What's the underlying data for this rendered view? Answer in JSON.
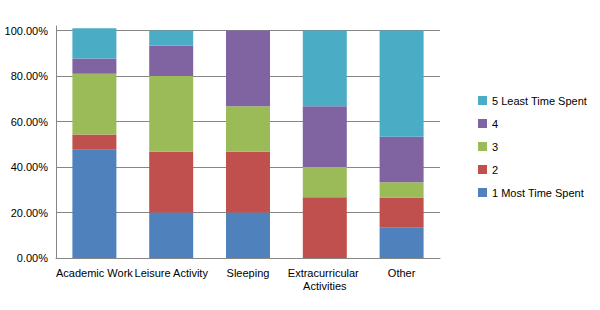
{
  "chart_data": {
    "type": "bar",
    "stacked": true,
    "legend": "right",
    "grid": true,
    "categories": [
      "Academic Work",
      "Leisure Activity",
      "Sleeping",
      "Extracurricular Activities",
      "Other"
    ],
    "series": [
      {
        "name": "1 Most Time Spent",
        "color": "#4f81bd",
        "values": [
          47.6,
          20,
          20,
          0,
          13.3
        ]
      },
      {
        "name": "2",
        "color": "#c0504d",
        "values": [
          6.7,
          26.7,
          26.7,
          26.7,
          13.3
        ]
      },
      {
        "name": "3",
        "color": "#9bbb59",
        "values": [
          26.7,
          33.3,
          20,
          13.3,
          6.7
        ]
      },
      {
        "name": "4",
        "color": "#8064a2",
        "values": [
          6.7,
          13.3,
          33.3,
          26.7,
          20
        ]
      },
      {
        "name": "5 Least Time Spent",
        "color": "#4bacc6",
        "values": [
          13.3,
          6.7,
          0,
          33.3,
          46.7
        ]
      }
    ],
    "ylim": [
      0,
      102
    ],
    "yticks": [
      {
        "value": 0,
        "label": "0.00%"
      },
      {
        "value": 20,
        "label": "20.00%"
      },
      {
        "value": 40,
        "label": "40.00%"
      },
      {
        "value": 60,
        "label": "60.00%"
      },
      {
        "value": 80,
        "label": "80.00%"
      },
      {
        "value": 100,
        "label": "100.00%"
      }
    ]
  }
}
